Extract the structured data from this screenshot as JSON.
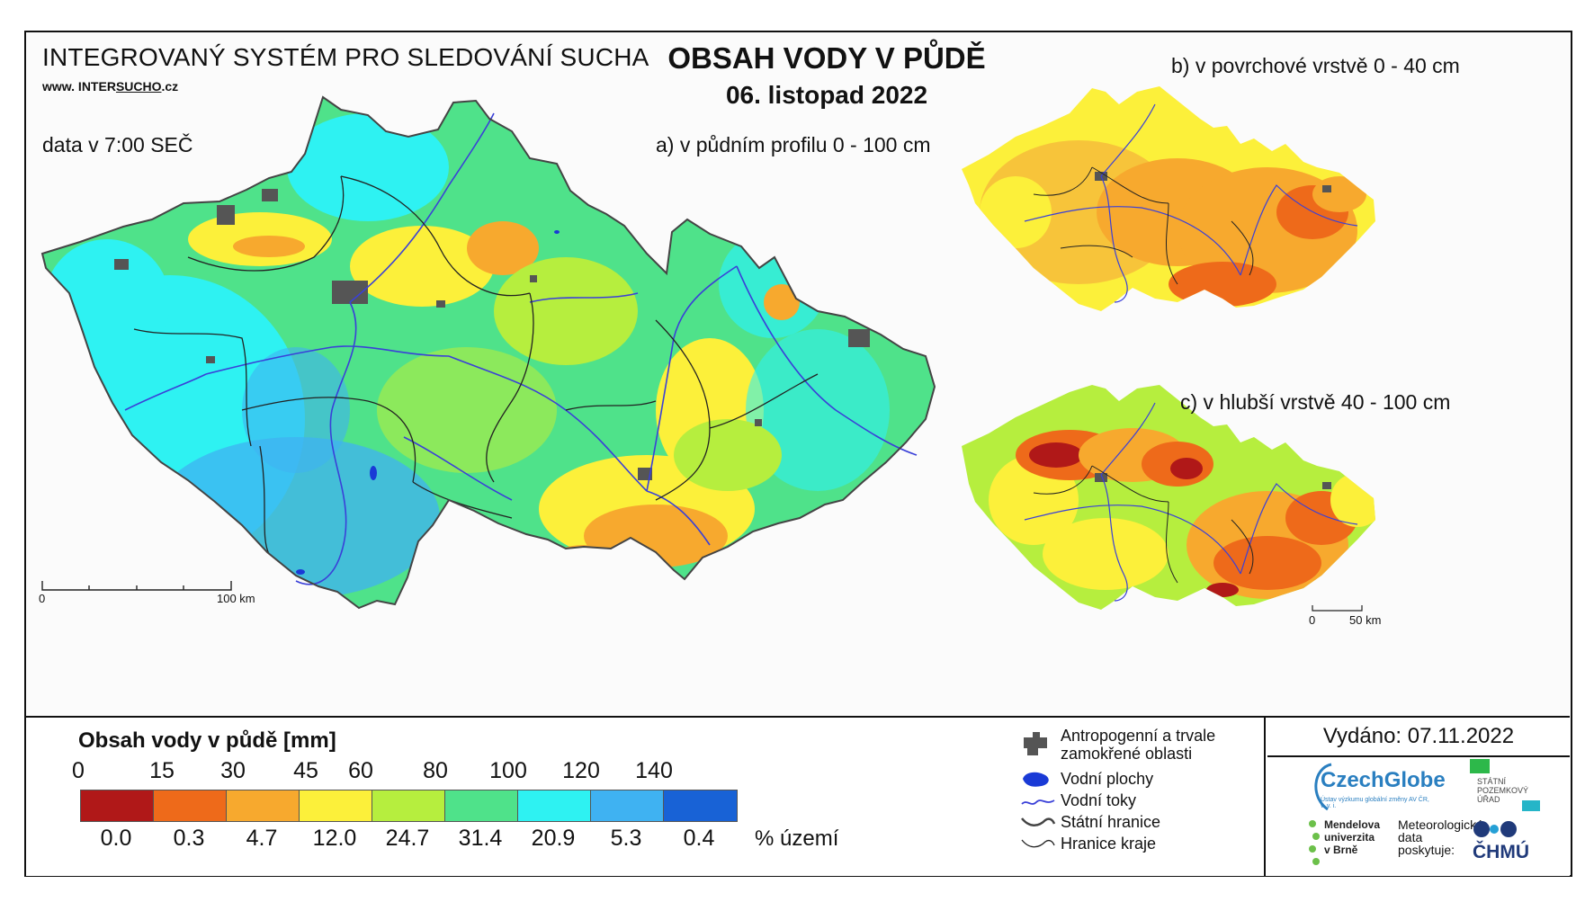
{
  "header": {
    "system_title": "INTEGROVANÝ SYSTÉM PRO SLEDOVÁNÍ SUCHA",
    "url_prefix": "www. INTER",
    "url_underline": "SUCHO",
    "url_suffix": ".cz",
    "data_time": "data v 7:00 SEČ",
    "main_title": "OBSAH VODY V PŮDĚ",
    "date": "06. listopad 2022"
  },
  "maps": {
    "a_label": "a) v půdním profilu 0 - 100 cm",
    "b_label": "b) v povrchové vrstvě 0 - 40 cm",
    "c_label": "c) v hlubší vrstvě 40 - 100 cm",
    "scale_main": {
      "start": "0",
      "end": "100 km"
    },
    "scale_small": {
      "start": "0",
      "end": "50 km"
    }
  },
  "legend": {
    "title": "Obsah vody v půdě  [mm]",
    "breaks": [
      "0",
      "15",
      "30",
      "45",
      "60",
      "80",
      "100",
      "120",
      "140"
    ],
    "colors": [
      "#b01818",
      "#ee6a1a",
      "#f7a92e",
      "#fcf03a",
      "#b6ee3e",
      "#4fe28a",
      "#2ef2f2",
      "#3fb2f2",
      "#1862d6"
    ],
    "percent": [
      "0.0",
      "0.3",
      "4.7",
      "12.0",
      "24.7",
      "31.4",
      "20.9",
      "5.3",
      "0.4"
    ],
    "percent_unit": "% území"
  },
  "symbols": {
    "anthro": "Antropogenní a trvale\nzamokřené oblasti",
    "water_areas": "Vodní plochy",
    "rivers": "Vodní toky",
    "state_border": "Státní hranice",
    "region_border": "Hranice kraje"
  },
  "issued": "Vydáno: 07.11.2022",
  "logos": {
    "czechglobe": "CzechGlobe",
    "czechglobe_sub": "Ústav výzkumu globální změny AV ČR, v. v. i.",
    "spu": "STÁTNÍ\nPOZEMKOVÝ\nÚŘAD",
    "mendelu": "Mendelova\nuniverzita\nv Brně",
    "met_data": "Meteorologická\ndata\nposkytuje:",
    "chmu": "ČHMÚ"
  }
}
